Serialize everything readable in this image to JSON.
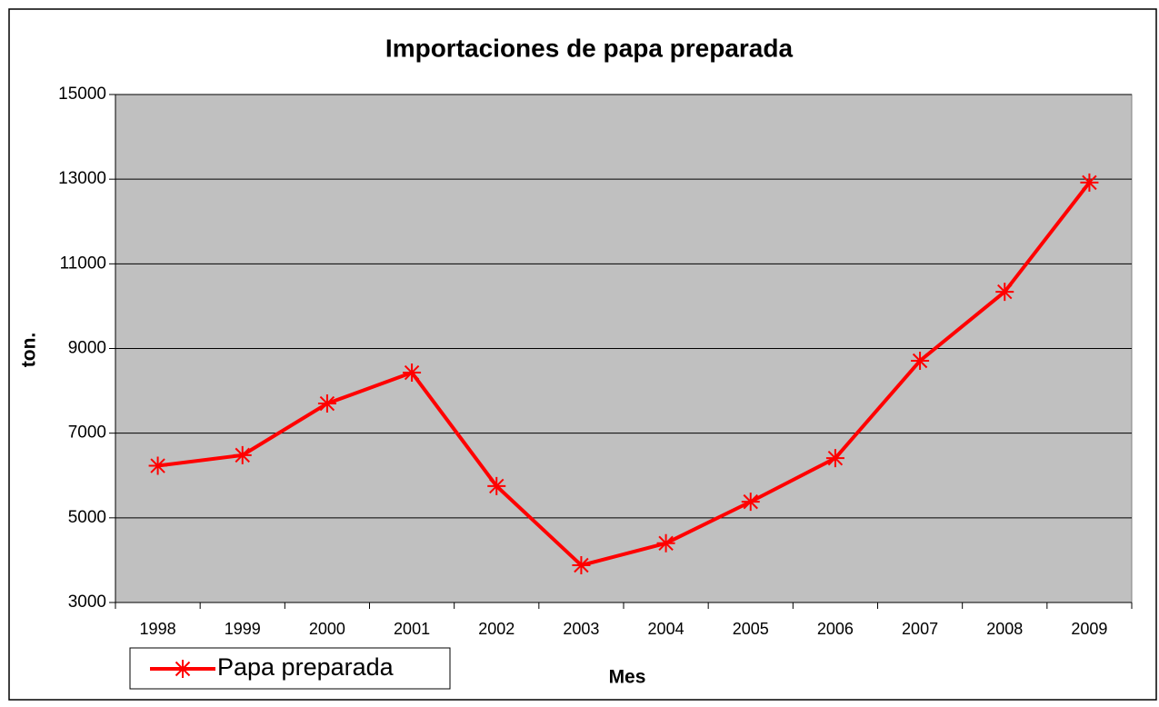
{
  "chart_data": {
    "type": "line",
    "title": "Importaciones de papa preparada",
    "x_label": "Mes",
    "y_label": "ton.",
    "categories": [
      "1998",
      "1999",
      "2000",
      "2001",
      "2002",
      "2003",
      "2004",
      "2005",
      "2006",
      "2007",
      "2008",
      "2009"
    ],
    "series": [
      {
        "name": "Papa preparada",
        "color": "#ff0000",
        "values": [
          6230,
          6480,
          7700,
          8430,
          5750,
          3880,
          4400,
          5380,
          6410,
          8710,
          10340,
          12920
        ]
      }
    ],
    "ylim": [
      3000,
      15000
    ],
    "yticks": [
      3000,
      5000,
      7000,
      9000,
      11000,
      13000,
      15000
    ],
    "grid": true,
    "legend": "bottom-left"
  }
}
